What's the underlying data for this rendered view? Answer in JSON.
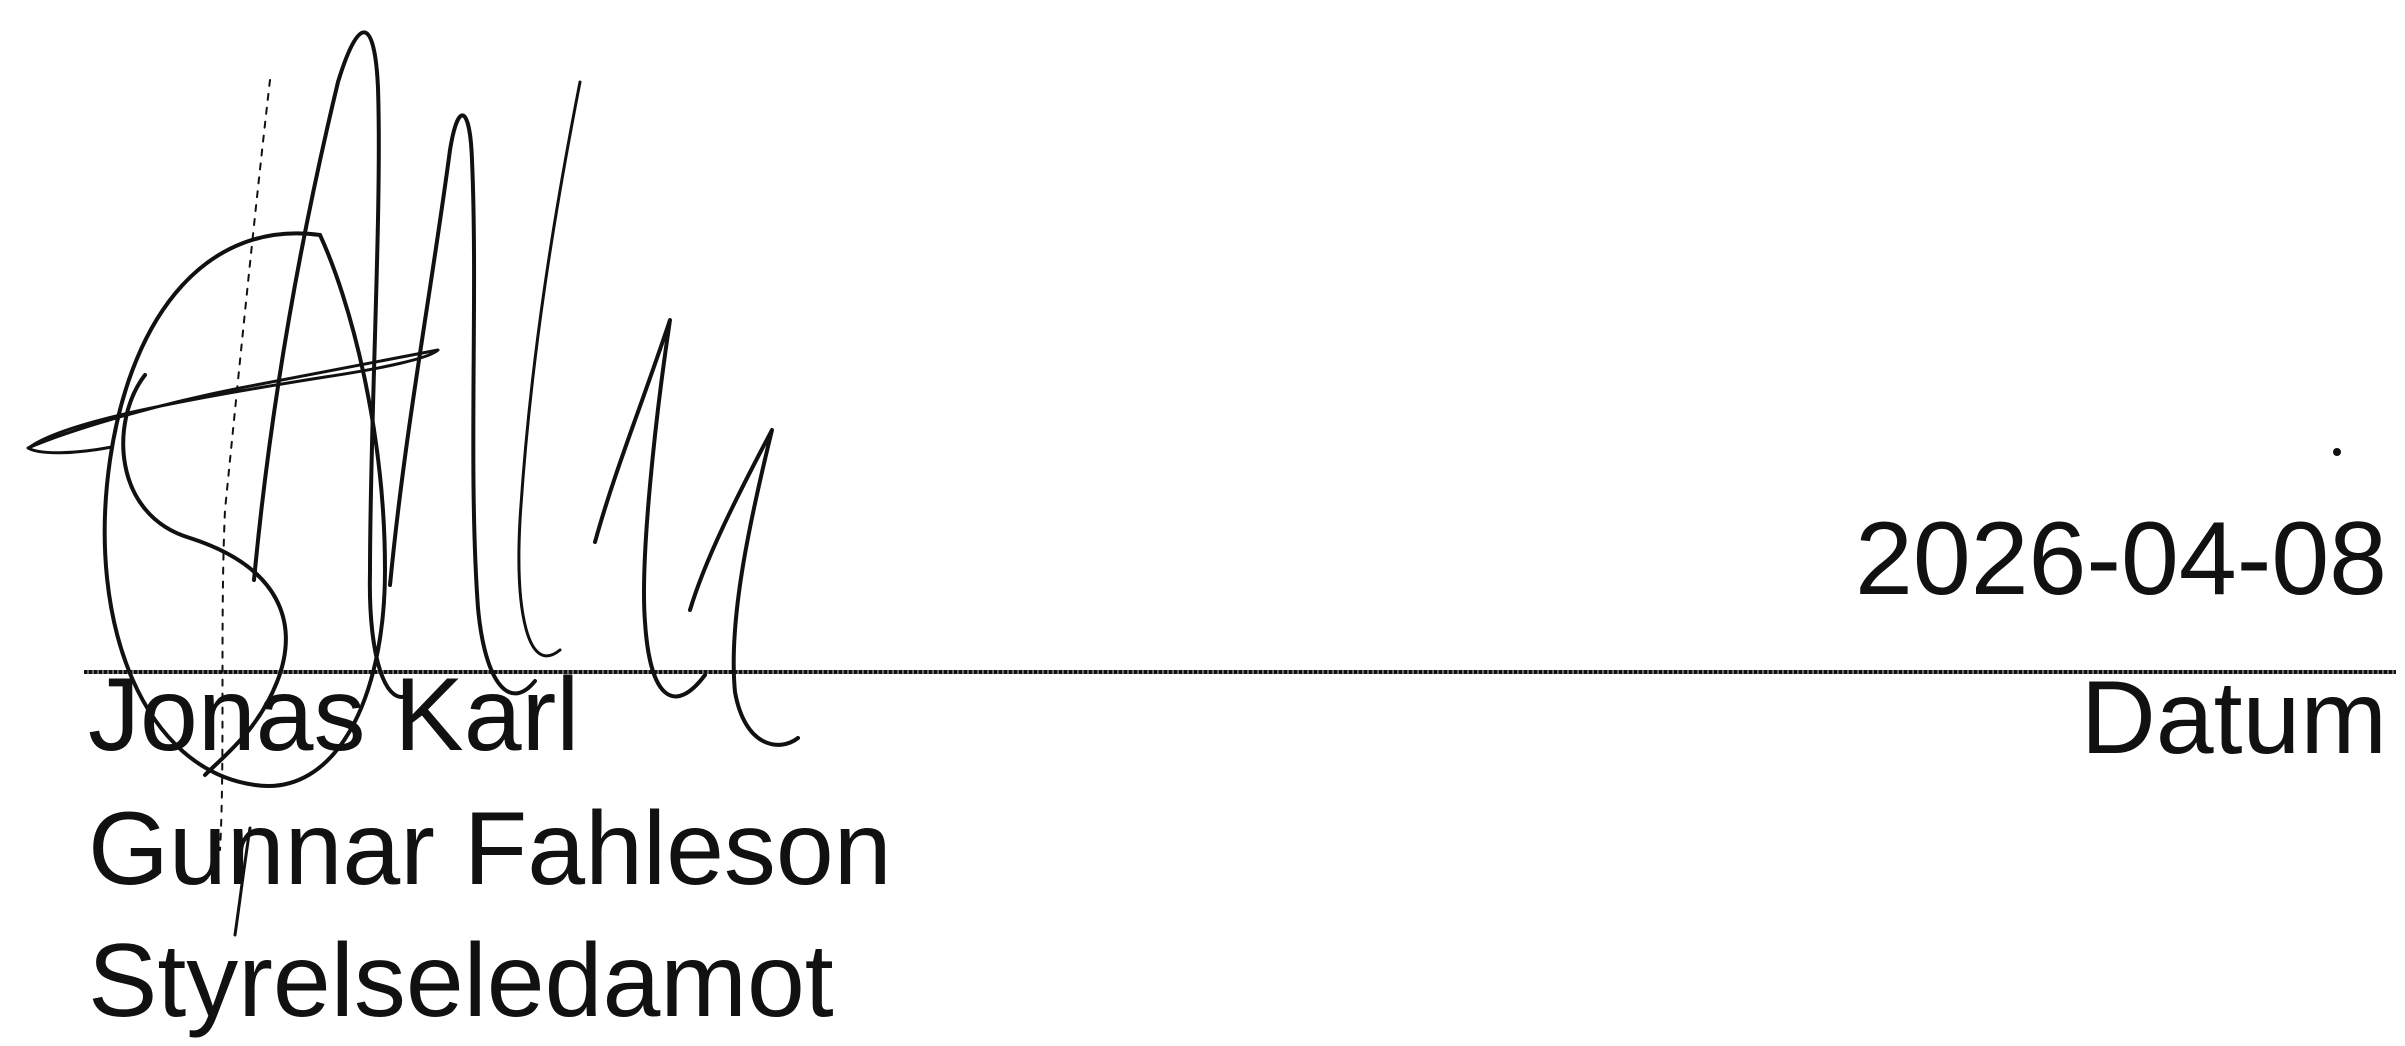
{
  "signature": {
    "name_line1": "Jonas Karl",
    "name_line2": "Gunnar Fahleson",
    "role": "Styrelseledamot",
    "date_value": "2026-04-08",
    "date_label": "Datum"
  }
}
